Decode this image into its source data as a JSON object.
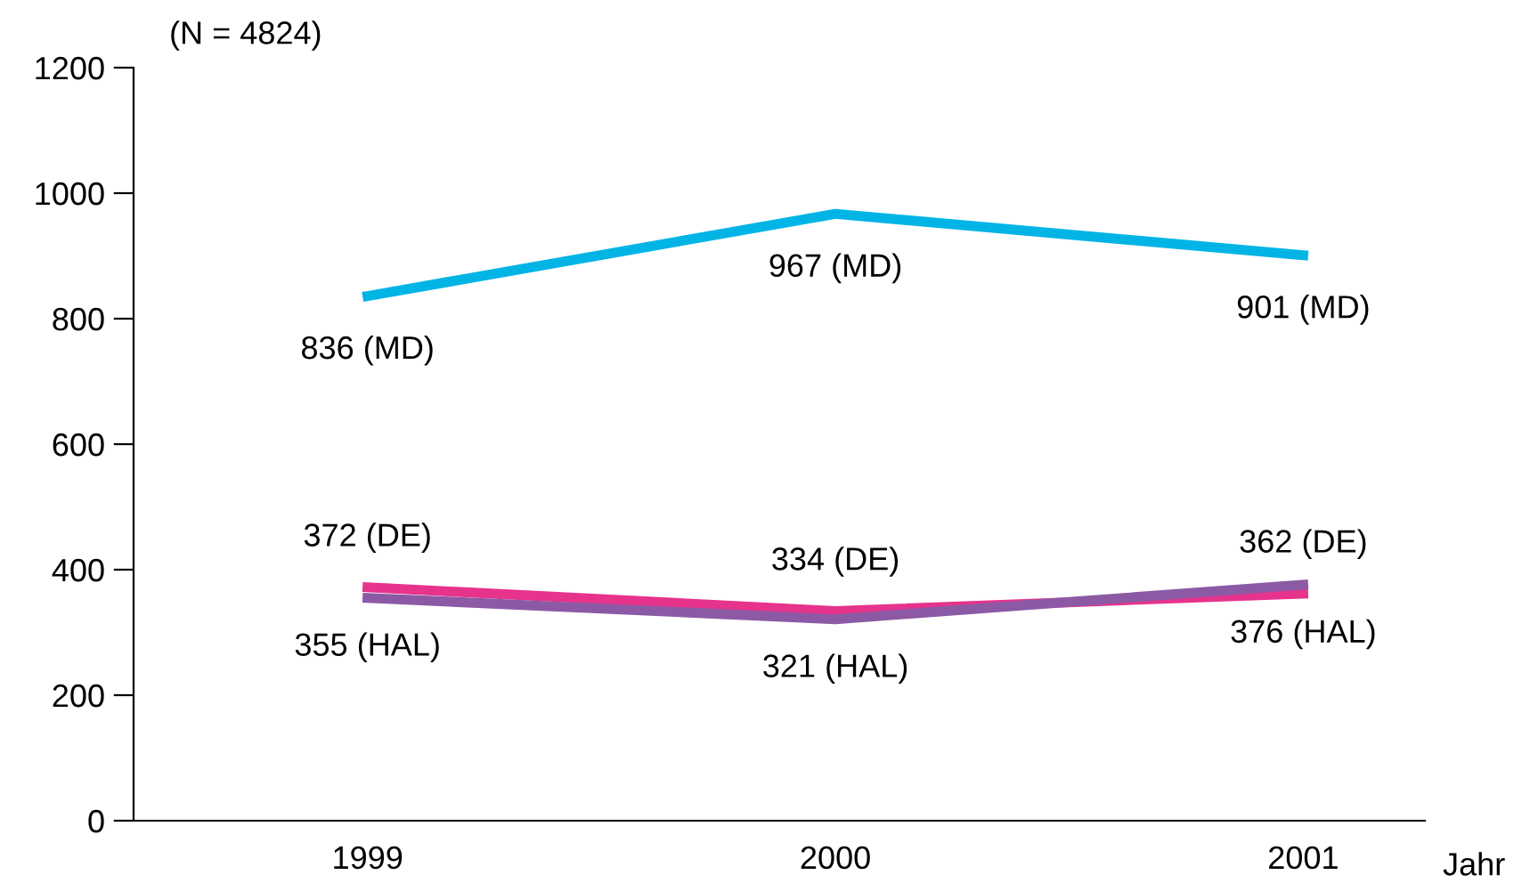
{
  "chart_data": {
    "type": "line",
    "xlabel": "Jahr",
    "annotations": [
      "(N = 4824)"
    ],
    "x": [
      1999,
      2000,
      2001
    ],
    "xlim": [
      1998.5,
      2001.26
    ],
    "xticks": [
      1999,
      2000,
      2001
    ],
    "ylim": [
      0,
      1200
    ],
    "yticks": [
      0,
      200,
      400,
      600,
      800,
      1000,
      1200
    ],
    "grid": false,
    "legend": false,
    "marker": "none",
    "line_style": "solid",
    "series": [
      {
        "color": "#00b4e6",
        "values": [
          836,
          967,
          901
        ],
        "value_labels": [
          "836 (MD)",
          "967 (MD)",
          "901 (MD)"
        ]
      },
      {
        "color": "#e6338c",
        "values": [
          372,
          334,
          362
        ],
        "value_labels": [
          "372 (DE)",
          "334 (DE)",
          "362 (DE)"
        ]
      },
      {
        "color": "#8c5aa5",
        "values": [
          355,
          321,
          376
        ],
        "value_labels": [
          "355 (HAL)",
          "321 (HAL)",
          "376 (HAL)"
        ]
      }
    ]
  }
}
